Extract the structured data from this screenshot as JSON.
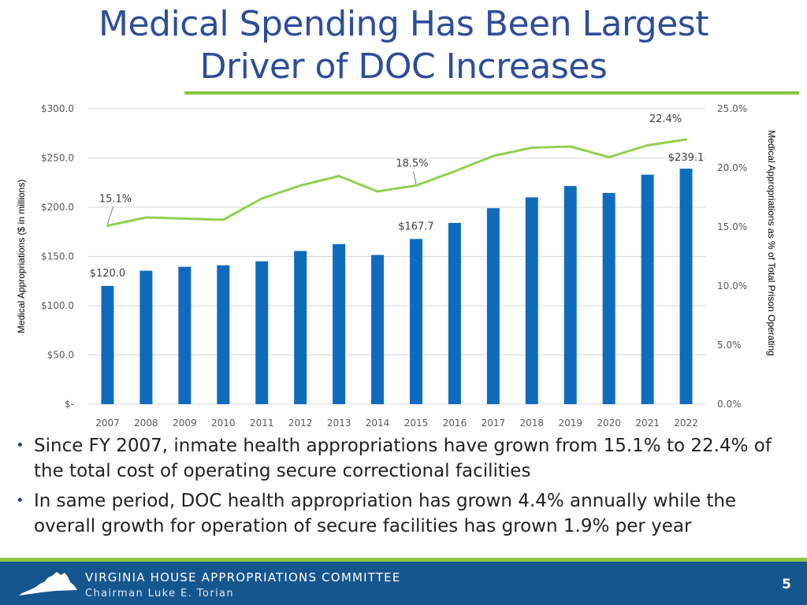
{
  "slide": {
    "title_line1": "Medical Spending Has Been Largest",
    "title_line2": "Driver of DOC Increases",
    "bullets": [
      "Since FY 2007, inmate health appropriations have grown from 15.1% to 22.4% of the total cost of operating secure correctional facilities",
      "In same period, DOC health appropriation has grown 4.4% annually while the overall growth for operation of secure facilities has grown 1.9% per year"
    ],
    "bullet_symbol": "•",
    "footer": {
      "committee": "VIRGINIA HOUSE APPROPRIATIONS COMMITTEE",
      "chairman": "Chairman Luke E. Torian",
      "page_number": "5"
    }
  },
  "colors": {
    "title": "#2e4d9a",
    "bar": "#0f6cbd",
    "line": "#92d050",
    "footer_band": "#16568f",
    "accent_rule": "#8cc63f",
    "grid": "#d9d9d9",
    "axis_text": "#595959"
  },
  "chart_data": {
    "type": "bar",
    "categories": [
      "2007",
      "2008",
      "2009",
      "2010",
      "2011",
      "2012",
      "2013",
      "2014",
      "2015",
      "2016",
      "2017",
      "2018",
      "2019",
      "2020",
      "2021",
      "2022"
    ],
    "series": [
      {
        "name": "Medical Appropriations ($ in millions)",
        "type": "bar",
        "axis": "left",
        "values": [
          120.0,
          135.5,
          139.5,
          141.0,
          145.0,
          155.5,
          162.5,
          151.5,
          167.7,
          184.0,
          199.0,
          210.0,
          221.5,
          214.5,
          233.0,
          239.1
        ]
      },
      {
        "name": "Medical Appropriations as % of Total Prison Operating",
        "type": "line",
        "axis": "right",
        "values": [
          15.1,
          15.8,
          15.7,
          15.6,
          17.4,
          18.5,
          19.3,
          18.0,
          18.5,
          19.7,
          21.0,
          21.7,
          21.8,
          20.9,
          21.9,
          22.4
        ]
      }
    ],
    "bar_labels": [
      {
        "index": 0,
        "text": "$120.0"
      },
      {
        "index": 8,
        "text": "$167.7"
      },
      {
        "index": 15,
        "text": "$239.1"
      }
    ],
    "line_labels": [
      {
        "index": 0,
        "text": "15.1%"
      },
      {
        "index": 8,
        "text": "18.5%"
      },
      {
        "index": 15,
        "text": "22.4%"
      }
    ],
    "left_axis": {
      "label": "Medical Appropriations ($ in millions)",
      "range": [
        0,
        300
      ],
      "ticks": [
        0,
        50,
        100,
        150,
        200,
        250,
        300
      ],
      "tick_labels": [
        "$-",
        "$50.0",
        "$100.0",
        "$150.0",
        "$200.0",
        "$250.0",
        "$300.0"
      ]
    },
    "right_axis": {
      "label": "Medical Appropriations as % of Total Prison Operating",
      "range": [
        0,
        25
      ],
      "ticks": [
        0,
        5,
        10,
        15,
        20,
        25
      ],
      "tick_labels": [
        "0.0%",
        "5.0%",
        "10.0%",
        "15.0%",
        "20.0%",
        "25.0%"
      ]
    },
    "grid": true,
    "legend": "none"
  }
}
